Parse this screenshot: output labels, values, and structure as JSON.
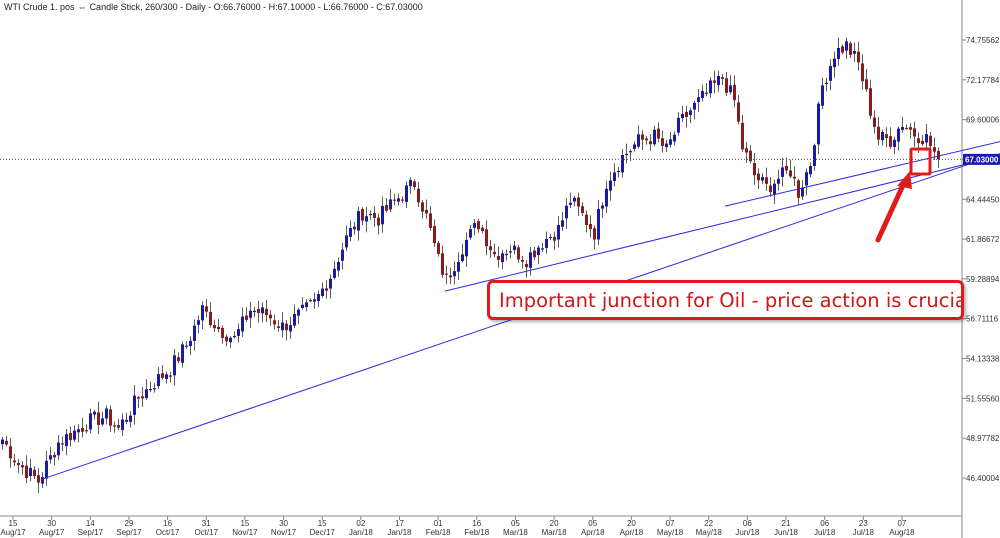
{
  "header": {
    "title": "WTI Crude 1. pos",
    "link_icon": "link-icon",
    "info": "Candle Stick, 260/300 - Daily - O:66.76000 - H:67.10000 - L:66.76000 - C:67.03000"
  },
  "callout": {
    "text": "Important junction for Oil - price action is crucial..."
  },
  "colors": {
    "up": "#1a1aa8",
    "down": "#8b1a1a",
    "trendline": "#2a2ae0",
    "annotation": "#e01b1b",
    "price_tag_bg": "#1a1aa8"
  },
  "chart_data": {
    "type": "candlestick",
    "title": "WTI Crude 1. pos",
    "current_price": "67.03000",
    "y_ticks": [
      "74.75562",
      "72.17784",
      "69.60006",
      "67.02228",
      "64.44450",
      "61.86672",
      "59.28894",
      "56.71116",
      "54.13338",
      "51.55560",
      "48.97782",
      "46.40004"
    ],
    "ylim": [
      45.4,
      76.8
    ],
    "x_ticks": [
      {
        "day": "15",
        "month": "Aug/17"
      },
      {
        "day": "30",
        "month": "Aug/17"
      },
      {
        "day": "14",
        "month": "Sep/17"
      },
      {
        "day": "29",
        "month": "Sep/17"
      },
      {
        "day": "16",
        "month": "Oct/17"
      },
      {
        "day": "31",
        "month": "Oct/17"
      },
      {
        "day": "15",
        "month": "Nov/17"
      },
      {
        "day": "30",
        "month": "Nov/17"
      },
      {
        "day": "15",
        "month": "Dec/17"
      },
      {
        "day": "02",
        "month": "Jan/18"
      },
      {
        "day": "17",
        "month": "Jan/18"
      },
      {
        "day": "01",
        "month": "Feb/18"
      },
      {
        "day": "16",
        "month": "Feb/18"
      },
      {
        "day": "05",
        "month": "Mar/18"
      },
      {
        "day": "20",
        "month": "Mar/18"
      },
      {
        "day": "05",
        "month": "Apr/18"
      },
      {
        "day": "20",
        "month": "Apr/18"
      },
      {
        "day": "07",
        "month": "May/18"
      },
      {
        "day": "22",
        "month": "May/18"
      },
      {
        "day": "06",
        "month": "Jun/18"
      },
      {
        "day": "21",
        "month": "Jun/18"
      },
      {
        "day": "06",
        "month": "Jul/18"
      },
      {
        "day": "23",
        "month": "Jul/18"
      },
      {
        "day": "07",
        "month": "Aug/18"
      }
    ],
    "price_path": [
      [
        0,
        48.9
      ],
      [
        4,
        47.3
      ],
      [
        9,
        46.2
      ],
      [
        14,
        48.7
      ],
      [
        22,
        50.1
      ],
      [
        26,
        50.4
      ],
      [
        29,
        49.6
      ],
      [
        34,
        51.6
      ],
      [
        38,
        52.6
      ],
      [
        42,
        53.5
      ],
      [
        46,
        55.0
      ],
      [
        50,
        57.3
      ],
      [
        54,
        56.1
      ],
      [
        58,
        55.4
      ],
      [
        62,
        57.3
      ],
      [
        66,
        57.0
      ],
      [
        70,
        56.2
      ],
      [
        74,
        56.9
      ],
      [
        78,
        57.7
      ],
      [
        82,
        59.5
      ],
      [
        86,
        61.9
      ],
      [
        90,
        63.6
      ],
      [
        94,
        63.2
      ],
      [
        98,
        64.3
      ],
      [
        103,
        65.5
      ],
      [
        106,
        63.3
      ],
      [
        109,
        60.5
      ],
      [
        111,
        59.2
      ],
      [
        115,
        61.4
      ],
      [
        119,
        62.9
      ],
      [
        123,
        60.9
      ],
      [
        127,
        61.3
      ],
      [
        131,
        60.6
      ],
      [
        135,
        61.7
      ],
      [
        139,
        62.5
      ],
      [
        142,
        64.4
      ],
      [
        145,
        63.4
      ],
      [
        148,
        62.3
      ],
      [
        151,
        65.6
      ],
      [
        155,
        67.2
      ],
      [
        159,
        68.2
      ],
      [
        163,
        68.5
      ],
      [
        166,
        67.6
      ],
      [
        169,
        69.2
      ],
      [
        172,
        70.2
      ],
      [
        175,
        71.0
      ],
      [
        177,
        71.6
      ],
      [
        180,
        72.3
      ],
      [
        183,
        70.8
      ],
      [
        185,
        67.8
      ],
      [
        188,
        66.0
      ],
      [
        191,
        65.2
      ],
      [
        194,
        65.8
      ],
      [
        197,
        66.3
      ],
      [
        199,
        64.9
      ],
      [
        202,
        66.8
      ],
      [
        205,
        71.8
      ],
      [
        208,
        73.9
      ],
      [
        211,
        74.4
      ],
      [
        214,
        73.2
      ],
      [
        217,
        70.2
      ],
      [
        219,
        68.4
      ],
      [
        222,
        68.3
      ],
      [
        225,
        69.4
      ],
      [
        228,
        68.7
      ],
      [
        231,
        68.4
      ],
      [
        234,
        67.0
      ]
    ],
    "trendlines": [
      {
        "from": [
          10,
          46.3
        ],
        "to": [
          260,
          68.3
        ]
      },
      {
        "from": [
          111,
          58.5
        ],
        "to": [
          260,
          67.9
        ]
      },
      {
        "from": [
          181,
          64.0
        ],
        "to": [
          260,
          68.8
        ]
      }
    ]
  }
}
